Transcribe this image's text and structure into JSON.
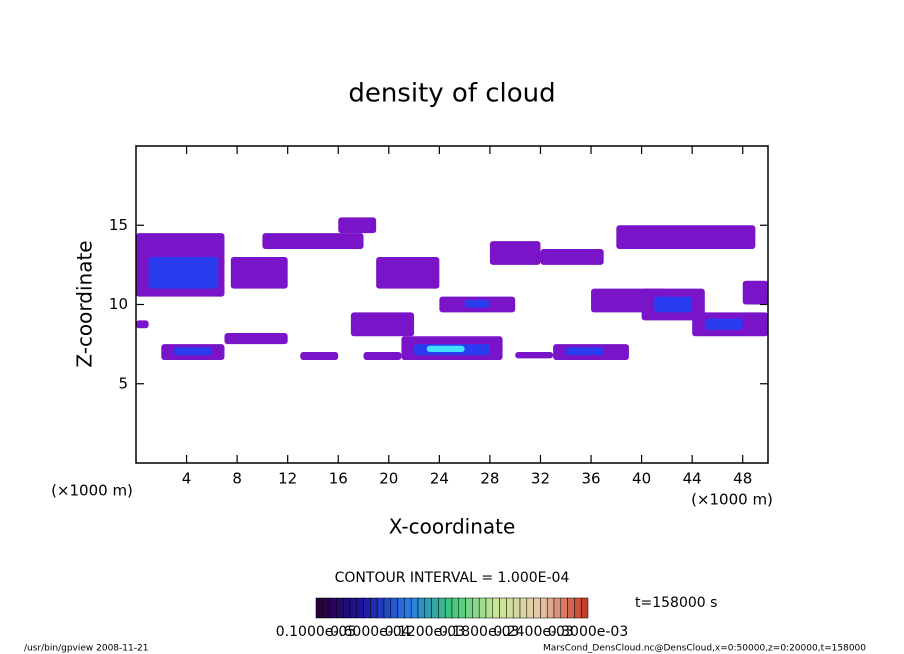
{
  "chart_data": {
    "type": "contour",
    "title": "density of cloud",
    "x_label": "X-coordinate",
    "y_label": "Z-coordinate",
    "x_unit_left": "(×1000 m)",
    "x_unit_right": "(×1000 m)",
    "xlim": [
      0,
      50
    ],
    "ylim": [
      0,
      20
    ],
    "xticks": [
      4,
      8,
      12,
      16,
      20,
      24,
      28,
      32,
      36,
      40,
      44,
      48
    ],
    "yticks": [
      5,
      10,
      15
    ],
    "contour_interval": "CONTOUR INTERVAL = 1.000E-04",
    "time_label": "t=158000 s",
    "colorbar_labels": [
      "0.1000e-05",
      "0.6000e-04",
      "0.1200e-03",
      "0.1800e-03",
      "0.2400e-03",
      "0.3000e-03"
    ],
    "footer_left": "/usr/bin/gpview   2008-11-21",
    "footer_right": "MarsCond_DensCloud.nc@DensCloud,x=0:50000,z=0:20000,t=158000",
    "cells": [
      {
        "x0": 0,
        "x1": 7,
        "z0": 10.5,
        "z1": 14.5,
        "value": 0.0001,
        "color": "#7a14c8"
      },
      {
        "x0": 1,
        "x1": 6.5,
        "z0": 11,
        "z1": 13,
        "value": 0.0002,
        "color": "#2a3cf0"
      },
      {
        "x0": 7.5,
        "x1": 12,
        "z0": 11,
        "z1": 13,
        "value": 0.0001,
        "color": "#7a14c8"
      },
      {
        "x0": 10,
        "x1": 18,
        "z0": 13.5,
        "z1": 14.5,
        "value": 0.0001,
        "color": "#7a14c8"
      },
      {
        "x0": 16,
        "x1": 19,
        "z0": 14.5,
        "z1": 15.5,
        "value": 0.0001,
        "color": "#7a14c8"
      },
      {
        "x0": 19,
        "x1": 24,
        "z0": 11,
        "z1": 13,
        "value": 0.0001,
        "color": "#7a14c8"
      },
      {
        "x0": 17,
        "x1": 22,
        "z0": 8,
        "z1": 9.5,
        "value": 0.0001,
        "color": "#7a14c8"
      },
      {
        "x0": 24,
        "x1": 30,
        "z0": 9.5,
        "z1": 10.5,
        "value": 0.0001,
        "color": "#7a14c8"
      },
      {
        "x0": 26,
        "x1": 28,
        "z0": 9.8,
        "z1": 10.3,
        "value": 0.0002,
        "color": "#2a3cf0"
      },
      {
        "x0": 28,
        "x1": 32,
        "z0": 12.5,
        "z1": 14,
        "value": 0.0001,
        "color": "#7a14c8"
      },
      {
        "x0": 32,
        "x1": 37,
        "z0": 12.5,
        "z1": 13.5,
        "value": 0.0001,
        "color": "#7a14c8"
      },
      {
        "x0": 38,
        "x1": 49,
        "z0": 13.5,
        "z1": 15,
        "value": 0.0001,
        "color": "#7a14c8"
      },
      {
        "x0": 36,
        "x1": 42,
        "z0": 9.5,
        "z1": 11,
        "value": 0.0001,
        "color": "#7a14c8"
      },
      {
        "x0": 40,
        "x1": 45,
        "z0": 9,
        "z1": 11,
        "value": 0.0001,
        "color": "#7a14c8"
      },
      {
        "x0": 41,
        "x1": 44,
        "z0": 9.5,
        "z1": 10.5,
        "value": 0.0002,
        "color": "#2a3cf0"
      },
      {
        "x0": 44,
        "x1": 50,
        "z0": 8,
        "z1": 9.5,
        "value": 0.0001,
        "color": "#7a14c8"
      },
      {
        "x0": 45,
        "x1": 48,
        "z0": 8.4,
        "z1": 9.1,
        "value": 0.0002,
        "color": "#2a3cf0"
      },
      {
        "x0": 48,
        "x1": 50,
        "z0": 10,
        "z1": 11.5,
        "value": 0.0001,
        "color": "#7a14c8"
      },
      {
        "x0": 0,
        "x1": 1,
        "z0": 8.5,
        "z1": 9,
        "value": 0.0001,
        "color": "#7a14c8"
      },
      {
        "x0": 2,
        "x1": 7,
        "z0": 6.5,
        "z1": 7.5,
        "value": 0.0001,
        "color": "#7a14c8"
      },
      {
        "x0": 3,
        "x1": 6,
        "z0": 6.8,
        "z1": 7.3,
        "value": 0.0002,
        "color": "#2a3cf0"
      },
      {
        "x0": 7,
        "x1": 12,
        "z0": 7.5,
        "z1": 8.2,
        "value": 0.0001,
        "color": "#7a14c8"
      },
      {
        "x0": 13,
        "x1": 16,
        "z0": 6.5,
        "z1": 7,
        "value": 0.0001,
        "color": "#7a14c8"
      },
      {
        "x0": 18,
        "x1": 21,
        "z0": 6.5,
        "z1": 7,
        "value": 0.0001,
        "color": "#7a14c8"
      },
      {
        "x0": 21,
        "x1": 29,
        "z0": 6.5,
        "z1": 8,
        "value": 0.0001,
        "color": "#7a14c8"
      },
      {
        "x0": 22,
        "x1": 28,
        "z0": 6.8,
        "z1": 7.5,
        "value": 0.0002,
        "color": "#2a3cf0"
      },
      {
        "x0": 23,
        "x1": 26,
        "z0": 7,
        "z1": 7.4,
        "value": 0.0003,
        "color": "#40e0ff"
      },
      {
        "x0": 30,
        "x1": 33,
        "z0": 6.6,
        "z1": 7,
        "value": 0.0001,
        "color": "#7a14c8"
      },
      {
        "x0": 33,
        "x1": 39,
        "z0": 6.5,
        "z1": 7.5,
        "value": 0.0001,
        "color": "#7a14c8"
      },
      {
        "x0": 34,
        "x1": 37,
        "z0": 6.8,
        "z1": 7.3,
        "value": 0.0002,
        "color": "#2a3cf0"
      }
    ]
  }
}
